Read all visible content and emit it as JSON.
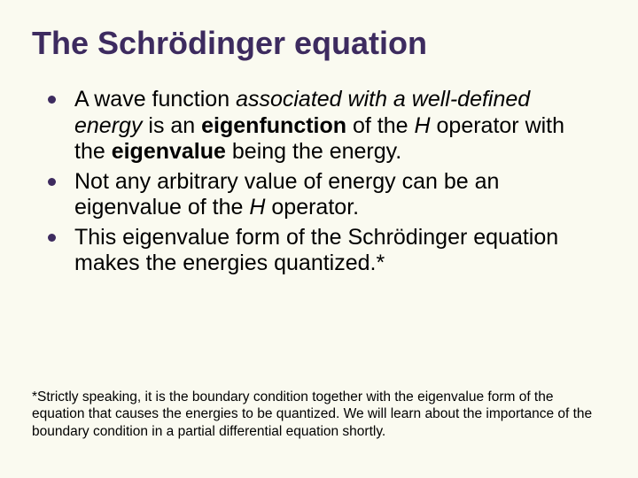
{
  "title": "The Schrödinger equation",
  "bullets": [
    {
      "pre": "A wave function ",
      "italic": "associated with a well-defined energy",
      "mid1": " is an ",
      "bold1": "eigenfunction",
      "mid2": " of the ",
      "h1": "H",
      "mid3": " operator with the ",
      "bold2": "eigenvalue",
      "mid4": " being the energy."
    },
    {
      "text1": "Not any arbitrary value of energy can be an eigenvalue of the ",
      "h": "H",
      "text2": " operator."
    },
    {
      "text": "This eigenvalue form of the Schrödinger equation makes the energies quantized.*"
    }
  ],
  "footnote": "*Strictly speaking, it is the boundary condition together with the eigenvalue form of the equation that causes the energies to be quantized. We will learn about the importance of the boundary condition in a partial differential equation shortly.",
  "style": {
    "background_color": "#fafaf0",
    "title_color": "#3d2b5f",
    "bullet_marker_color": "#3d2b5f",
    "text_color": "#000000",
    "title_fontsize": 36,
    "body_fontsize": 25,
    "footnote_fontsize": 15.5,
    "font_family": "Arial"
  }
}
